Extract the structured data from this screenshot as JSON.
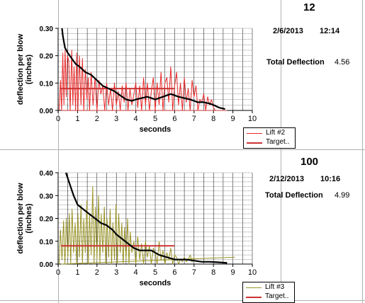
{
  "chart_data": [
    {
      "type": "line",
      "id_number": "12",
      "date": "2/6/2013",
      "time": "12:14",
      "total_label": "Total Deflection",
      "total_value": "4.56",
      "xlabel": "seconds",
      "ylabel": "deflection per blow (inches)",
      "xlim": [
        0,
        10
      ],
      "ylim": [
        0,
        0.3
      ],
      "xticks": [
        "0",
        "1",
        "2",
        "3",
        "4",
        "5",
        "6",
        "7",
        "8",
        "9",
        "10"
      ],
      "yticks": [
        "0.00",
        "0.10",
        "0.20",
        "0.30"
      ],
      "grid": true,
      "legend_position": "bottom-right",
      "series": [
        {
          "name": "Lift #2",
          "color": "#e8292a",
          "kind": "raw",
          "x": [
            0.05,
            0.12,
            0.18,
            0.24,
            0.3,
            0.36,
            0.42,
            0.48,
            0.55,
            0.62,
            0.7,
            0.76,
            0.82,
            0.9,
            0.96,
            1.02,
            1.1,
            1.18,
            1.25,
            1.32,
            1.4,
            1.48,
            1.55,
            1.62,
            1.7,
            1.8,
            1.9,
            2.0,
            2.1,
            2.2,
            2.3,
            2.4,
            2.5,
            2.6,
            2.7,
            2.8,
            2.9,
            3.0,
            3.1,
            3.2,
            3.3,
            3.4,
            3.5,
            3.6,
            3.7,
            3.8,
            3.9,
            4.0,
            4.1,
            4.2,
            4.3,
            4.4,
            4.5,
            4.6,
            4.7,
            4.8,
            4.9,
            5.0,
            5.1,
            5.2,
            5.3,
            5.4,
            5.5,
            5.6,
            5.7,
            5.8,
            5.9,
            6.0,
            6.1,
            6.2,
            6.3,
            6.4,
            6.5,
            6.6,
            6.7,
            6.8,
            6.9,
            7.0,
            7.1,
            7.2,
            7.3,
            7.4,
            7.5,
            7.6,
            7.7,
            7.8,
            7.9,
            8.0,
            8.1
          ],
          "values": [
            0.0,
            0.11,
            0.0,
            0.21,
            0.02,
            0.22,
            0.05,
            0.2,
            0.18,
            0.0,
            0.22,
            0.02,
            0.16,
            0.0,
            0.21,
            0.0,
            0.2,
            0.02,
            0.19,
            0.0,
            0.15,
            0.04,
            0.12,
            0.0,
            0.14,
            0.02,
            0.12,
            0.0,
            0.11,
            0.06,
            0.09,
            0.0,
            0.1,
            0.02,
            0.08,
            0.0,
            0.1,
            0.02,
            0.07,
            0.0,
            0.09,
            0.03,
            0.1,
            0.0,
            0.08,
            0.02,
            0.06,
            0.1,
            0.01,
            0.09,
            0.0,
            0.12,
            0.02,
            0.1,
            0.0,
            0.07,
            0.12,
            0.0,
            0.1,
            0.02,
            0.14,
            0.0,
            0.1,
            0.12,
            0.03,
            0.16,
            0.0,
            0.09,
            0.14,
            0.02,
            0.1,
            0.0,
            0.12,
            0.03,
            0.08,
            0.0,
            0.11,
            0.05,
            0.09,
            0.0,
            0.04,
            0.03,
            0.06,
            0.0,
            0.05,
            0.02,
            0.04,
            0.01,
            0.0
          ]
        },
        {
          "name": "Target..",
          "color": "#cc3333",
          "kind": "target",
          "x": [
            0.15,
            6.0
          ],
          "values": [
            0.08,
            0.08
          ]
        },
        {
          "name": "",
          "color": "#cc3333",
          "kind": "baseline",
          "x": [
            0.15,
            8.7
          ],
          "values": [
            0.0,
            0.0
          ]
        },
        {
          "name": "",
          "color": "#000000",
          "kind": "trend",
          "x": [
            0.2,
            0.25,
            0.35,
            0.5,
            0.7,
            0.9,
            1.1,
            1.4,
            1.7,
            2.0,
            2.3,
            2.6,
            2.9,
            3.1,
            3.3,
            3.5,
            3.8,
            4.0,
            4.3,
            4.6,
            4.8,
            5.0,
            5.2,
            5.4,
            5.6,
            5.8,
            6.0,
            6.2,
            6.5,
            6.8,
            7.0,
            7.2,
            7.5,
            7.8,
            8.0,
            8.3,
            8.6
          ],
          "values": [
            0.3,
            0.27,
            0.23,
            0.21,
            0.19,
            0.17,
            0.16,
            0.14,
            0.13,
            0.11,
            0.09,
            0.08,
            0.07,
            0.06,
            0.05,
            0.04,
            0.035,
            0.04,
            0.045,
            0.05,
            0.045,
            0.04,
            0.045,
            0.05,
            0.055,
            0.06,
            0.055,
            0.05,
            0.045,
            0.04,
            0.035,
            0.03,
            0.03,
            0.025,
            0.02,
            0.01,
            0.005
          ]
        }
      ]
    },
    {
      "type": "line",
      "id_number": "100",
      "date": "2/12/2013",
      "time": "10:16",
      "total_label": "Total Deflection",
      "total_value": "4.99",
      "xlabel": "seconds",
      "ylabel": "deflection per blow (inches)",
      "xlim": [
        0,
        10
      ],
      "ylim": [
        0,
        0.4
      ],
      "xticks": [
        "0",
        "1",
        "2",
        "3",
        "4",
        "5",
        "6",
        "7",
        "8",
        "9",
        "10"
      ],
      "yticks": [
        "0.00",
        "0.10",
        "0.20",
        "0.30",
        "0.40"
      ],
      "grid": true,
      "legend_position": "bottom-right",
      "series": [
        {
          "name": "Lift #3",
          "color": "#9a9426",
          "kind": "raw",
          "x": [
            0.05,
            0.12,
            0.2,
            0.28,
            0.35,
            0.42,
            0.5,
            0.58,
            0.65,
            0.72,
            0.8,
            0.88,
            0.95,
            1.02,
            1.1,
            1.18,
            1.25,
            1.32,
            1.4,
            1.48,
            1.55,
            1.62,
            1.7,
            1.78,
            1.85,
            1.92,
            2.0,
            2.08,
            2.15,
            2.22,
            2.3,
            2.38,
            2.45,
            2.52,
            2.6,
            2.68,
            2.75,
            2.82,
            2.9,
            2.98,
            3.05,
            3.12,
            3.2,
            3.28,
            3.35,
            3.42,
            3.5,
            3.58,
            3.65,
            3.72,
            3.8,
            3.9,
            4.0,
            4.1,
            4.2,
            4.3,
            4.4,
            4.5,
            4.6,
            4.7,
            4.8,
            4.9,
            5.0,
            5.1,
            5.2,
            5.3,
            5.4,
            5.5,
            5.6,
            5.7,
            5.8,
            5.9,
            6.0,
            6.1,
            6.2,
            6.3,
            6.4,
            6.5,
            6.6,
            6.7,
            6.8,
            6.9,
            7.0
          ],
          "values": [
            0.0,
            0.15,
            0.02,
            0.19,
            0.0,
            0.2,
            0.03,
            0.22,
            0.0,
            0.24,
            0.05,
            0.18,
            0.0,
            0.22,
            0.03,
            0.26,
            0.0,
            0.2,
            0.05,
            0.28,
            0.0,
            0.22,
            0.04,
            0.34,
            0.0,
            0.25,
            0.02,
            0.3,
            0.0,
            0.22,
            0.05,
            0.25,
            0.0,
            0.2,
            0.03,
            0.24,
            0.0,
            0.18,
            0.02,
            0.26,
            0.0,
            0.22,
            0.05,
            0.18,
            0.0,
            0.16,
            0.02,
            0.2,
            0.0,
            0.14,
            0.05,
            0.1,
            0.0,
            0.12,
            0.02,
            0.09,
            0.0,
            0.1,
            0.03,
            0.08,
            0.0,
            0.07,
            0.05,
            0.0,
            0.1,
            0.02,
            0.06,
            0.0,
            0.05,
            0.02,
            0.07,
            0.0,
            0.04,
            0.03,
            0.0,
            0.02,
            0.01,
            0.03,
            0.01,
            0.02,
            0.04,
            0.01,
            0.03
          ]
        },
        {
          "name": "Target..",
          "color": "#cc3333",
          "kind": "target",
          "x": [
            0.15,
            6.0
          ],
          "values": [
            0.08,
            0.08
          ]
        },
        {
          "name": "",
          "color": "#9a9426",
          "kind": "baseline",
          "x": [
            0.15,
            9.1
          ],
          "values": [
            0.0,
            0.03
          ]
        },
        {
          "name": "",
          "color": "#000000",
          "kind": "trend",
          "x": [
            0.4,
            0.6,
            0.8,
            1.0,
            1.3,
            1.6,
            1.9,
            2.2,
            2.5,
            2.8,
            3.0,
            3.3,
            3.6,
            3.9,
            4.2,
            4.5,
            4.8,
            5.0,
            5.2,
            5.4,
            5.6,
            5.8,
            6.0,
            6.3,
            6.6,
            7.0,
            7.4,
            7.8,
            8.2,
            8.7
          ],
          "values": [
            0.4,
            0.35,
            0.3,
            0.26,
            0.24,
            0.22,
            0.2,
            0.18,
            0.17,
            0.15,
            0.13,
            0.11,
            0.09,
            0.07,
            0.06,
            0.06,
            0.06,
            0.05,
            0.04,
            0.035,
            0.03,
            0.025,
            0.02,
            0.02,
            0.02,
            0.015,
            0.01,
            0.01,
            0.008,
            0.005
          ]
        }
      ]
    }
  ]
}
